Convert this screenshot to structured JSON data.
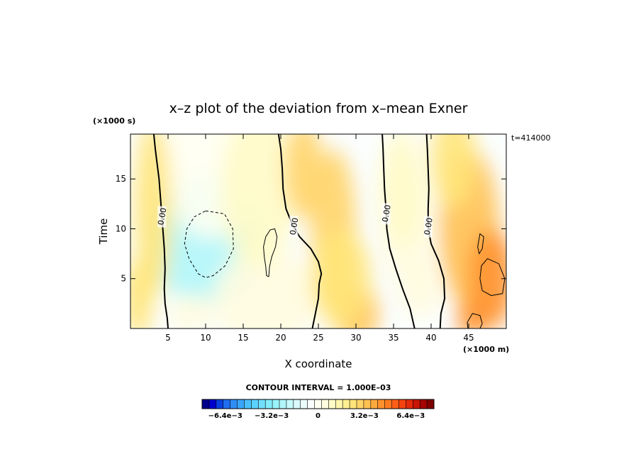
{
  "chart_data": {
    "type": "contour",
    "title": "x–z plot of the deviation from x–mean Exner",
    "xlabel": "X coordinate",
    "ylabel": "Time",
    "x_unit": "(×1000 m)",
    "y_unit": "(×1000 s)",
    "time_label": "t=414000",
    "xlim": [
      0,
      50
    ],
    "ylim": [
      0,
      19.5
    ],
    "x_ticks": [
      5,
      10,
      15,
      20,
      25,
      30,
      35,
      40,
      45
    ],
    "y_ticks": [
      5,
      10,
      15
    ],
    "contour_interval_label": "CONTOUR INTERVAL = 1.000E–03",
    "zero_contours": [
      {
        "label": "0.00",
        "points": [
          [
            5,
            0
          ],
          [
            4.9,
            1
          ],
          [
            4.6,
            2.5
          ],
          [
            4.5,
            4
          ],
          [
            4.6,
            6
          ],
          [
            4.5,
            8
          ],
          [
            4.3,
            10
          ],
          [
            4.1,
            12
          ],
          [
            3.8,
            15
          ],
          [
            3.3,
            18
          ],
          [
            3.1,
            19.5
          ]
        ]
      },
      {
        "label": "0.00",
        "points": [
          [
            19.7,
            19.5
          ],
          [
            20.0,
            18
          ],
          [
            20.2,
            16
          ],
          [
            20.3,
            14
          ],
          [
            20.7,
            12
          ],
          [
            21.5,
            10.5
          ],
          [
            22.5,
            9.2
          ],
          [
            24,
            8
          ],
          [
            25,
            6.7
          ],
          [
            25.4,
            5.5
          ],
          [
            25.1,
            4.5
          ],
          [
            25.0,
            3
          ],
          [
            24.6,
            1.5
          ],
          [
            24.2,
            0
          ]
        ]
      },
      {
        "label": "0.00",
        "points": [
          [
            33.5,
            19.5
          ],
          [
            33.6,
            18
          ],
          [
            33.7,
            16
          ],
          [
            33.8,
            14
          ],
          [
            34.0,
            12
          ],
          [
            34.1,
            10
          ],
          [
            34.5,
            8
          ],
          [
            35.3,
            6
          ],
          [
            36.2,
            4
          ],
          [
            37.2,
            2
          ],
          [
            37.8,
            0
          ]
        ]
      },
      {
        "label": "0.00",
        "points": [
          [
            39.4,
            19.5
          ],
          [
            39.5,
            18
          ],
          [
            39.6,
            16
          ],
          [
            39.7,
            14
          ],
          [
            39.6,
            12
          ],
          [
            39.6,
            10
          ],
          [
            40.0,
            8.5
          ],
          [
            41.0,
            6.8
          ],
          [
            41.7,
            5
          ],
          [
            41.8,
            3
          ],
          [
            41.3,
            1.5
          ],
          [
            41.2,
            0
          ]
        ]
      }
    ],
    "closed_contours": [
      {
        "style": "dashed",
        "points": [
          [
            10,
            11.8
          ],
          [
            12.5,
            11.5
          ],
          [
            13.6,
            10
          ],
          [
            13.7,
            8
          ],
          [
            12.6,
            6.3
          ],
          [
            11,
            5.3
          ],
          [
            10,
            5.1
          ],
          [
            9,
            5.5
          ],
          [
            7.8,
            7
          ],
          [
            7.2,
            8.5
          ],
          [
            7.5,
            10
          ],
          [
            8.5,
            11.2
          ],
          [
            10,
            11.8
          ]
        ]
      },
      {
        "style": "solid",
        "points": [
          [
            19.2,
            10
          ],
          [
            19.5,
            9.2
          ],
          [
            19.3,
            8.2
          ],
          [
            18.8,
            7.2
          ],
          [
            18.5,
            6.2
          ],
          [
            18.4,
            5.2
          ],
          [
            18.1,
            5.3
          ],
          [
            18.0,
            6.2
          ],
          [
            17.8,
            7.2
          ],
          [
            17.7,
            8.2
          ],
          [
            18.0,
            9.2
          ],
          [
            18.6,
            9.9
          ],
          [
            19.2,
            10
          ]
        ]
      },
      {
        "style": "solid",
        "points": [
          [
            46.5,
            9.5
          ],
          [
            47,
            9.2
          ],
          [
            46.8,
            8
          ],
          [
            46.4,
            7.5
          ],
          [
            46.2,
            8.2
          ],
          [
            46.5,
            9.5
          ]
        ]
      },
      {
        "style": "solid",
        "points": [
          [
            47.5,
            7
          ],
          [
            49,
            6.5
          ],
          [
            49.8,
            5
          ],
          [
            49.5,
            3.5
          ],
          [
            48,
            3.3
          ],
          [
            46.8,
            3.8
          ],
          [
            46.5,
            5
          ],
          [
            46.7,
            6.3
          ],
          [
            47.5,
            7
          ]
        ]
      },
      {
        "style": "solid",
        "points": [
          [
            45.5,
            1.5
          ],
          [
            46.5,
            1.3
          ],
          [
            46.8,
            0.5
          ],
          [
            46.5,
            0
          ],
          [
            44.9,
            0
          ],
          [
            44.8,
            0.6
          ],
          [
            45.5,
            1.5
          ]
        ]
      }
    ],
    "anomalies": [
      {
        "x": 10,
        "y": 8.8,
        "value": -0.0036,
        "sx": 7.5,
        "sy": 6.5
      },
      {
        "x": 10.5,
        "y": 16,
        "value": -0.0014,
        "sx": 6,
        "sy": 7
      },
      {
        "x": 18,
        "y": 3,
        "value": -0.0012,
        "sx": 7,
        "sy": 5
      },
      {
        "x": 8,
        "y": 1.5,
        "value": -0.001,
        "sx": 3,
        "sy": 2
      },
      {
        "x": 17,
        "y": 14,
        "value": -0.0006,
        "sx": 5,
        "sy": 8
      },
      {
        "x": 37,
        "y": 10,
        "value": -0.0012,
        "sx": 3.5,
        "sy": 6
      },
      {
        "x": 38.5,
        "y": 4,
        "value": -0.001,
        "sx": 3,
        "sy": 3
      },
      {
        "x": 36,
        "y": 14,
        "value": -0.0006,
        "sx": 3,
        "sy": 6
      },
      {
        "x": 3,
        "y": 12,
        "value": 0.0006,
        "sx": 2.5,
        "sy": 9
      },
      {
        "x": 1,
        "y": 3,
        "value": 0.0005,
        "sx": 2,
        "sy": 4
      },
      {
        "x": 23,
        "y": 16,
        "value": 0.0008,
        "sx": 2.5,
        "sy": 5
      },
      {
        "x": 27,
        "y": 10,
        "value": 0.0008,
        "sx": 3,
        "sy": 8
      },
      {
        "x": 30,
        "y": 1.5,
        "value": 0.0014,
        "sx": 3,
        "sy": 3
      },
      {
        "x": 28,
        "y": 5,
        "value": 0.0006,
        "sx": 4,
        "sy": 5
      },
      {
        "x": 45,
        "y": 10,
        "value": 0.0012,
        "sx": 4,
        "sy": 8
      },
      {
        "x": 48,
        "y": 5,
        "value": 0.0022,
        "sx": 3,
        "sy": 5
      },
      {
        "x": 45.5,
        "y": 1,
        "value": 0.002,
        "sx": 2,
        "sy": 2
      },
      {
        "x": 43,
        "y": 17,
        "value": 0.0006,
        "sx": 3,
        "sy": 5
      }
    ],
    "colorbar": {
      "min": -0.008,
      "max": 0.008,
      "step": 0.0004,
      "tick_values": [
        -0.0064,
        -0.0032,
        0,
        0.0032,
        0.0064
      ],
      "tick_labels": [
        "−6.4e−3",
        "−3.2e−3",
        "0",
        "3.2e−3",
        "6.4e−3"
      ],
      "colors": [
        "#00008b",
        "#0000cd",
        "#0a3fe0",
        "#1f6ef0",
        "#2e8ef5",
        "#3aa6fa",
        "#4cc0ff",
        "#5cd2ff",
        "#6fe0fd",
        "#84ecfb",
        "#9af2fa",
        "#b0f6fa",
        "#c6f9fb",
        "#daf9fb",
        "#ecfbfc",
        "#fbfefe",
        "#fffff2",
        "#fffce0",
        "#fffbc8",
        "#fff6ad",
        "#fff092",
        "#ffe57a",
        "#ffd468",
        "#ffc052",
        "#ffa93e",
        "#ff922d",
        "#ff7a20",
        "#ff5f16",
        "#f5430f",
        "#e32a0a",
        "#c91505",
        "#a60303",
        "#7f0000"
      ]
    }
  }
}
